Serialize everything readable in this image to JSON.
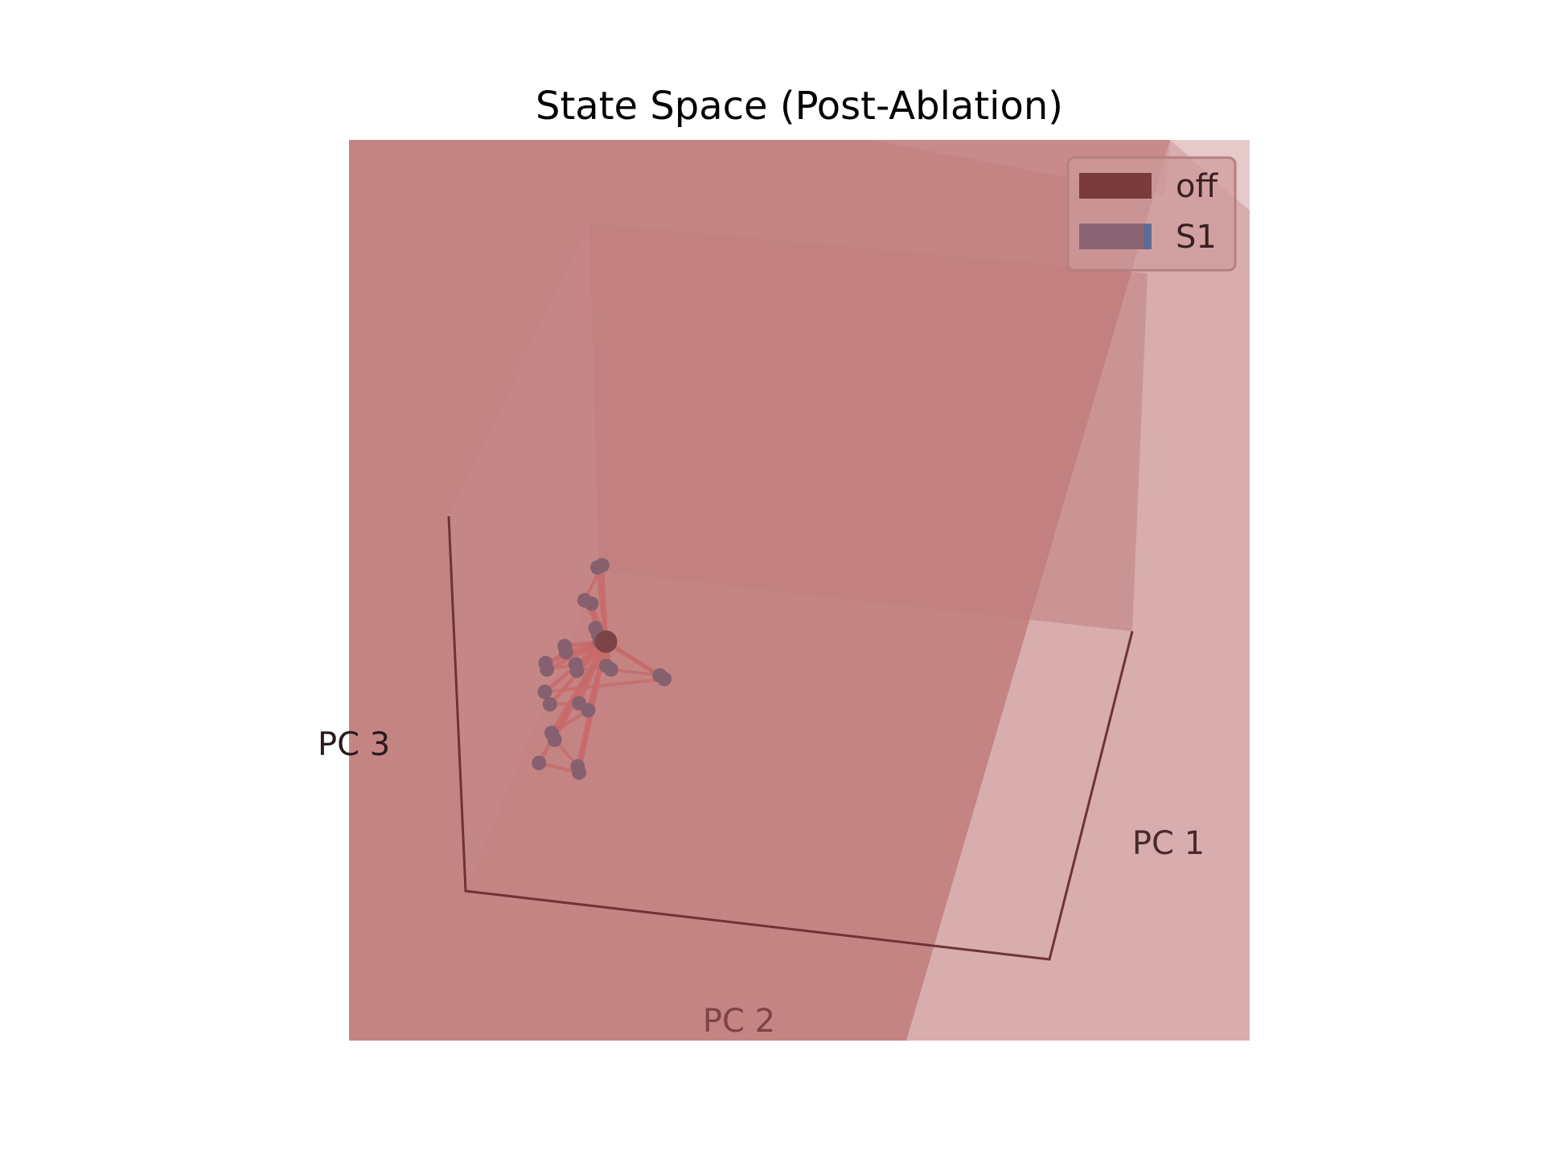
{
  "chart_data": {
    "type": "scatter",
    "subtype": "3d-trajectory",
    "title": "State Space (Post-Ablation)",
    "axes": {
      "x": {
        "label": "PC 1"
      },
      "y": {
        "label": "PC 2"
      },
      "z": {
        "label": "PC 3"
      }
    },
    "grid": false,
    "legend": {
      "placement": "top-right",
      "entries": [
        {
          "label": "off",
          "color": "#7a3b3e"
        },
        {
          "label": "S1",
          "color": "#5f6b94"
        }
      ]
    },
    "colors": {
      "background_plane": "#c48484",
      "light_plane": "#d7adad",
      "trajectory": "#c96a6a",
      "marker": "#86606f",
      "center_marker": "#7d4448",
      "box_edge": "#5a2a2e"
    },
    "series": [
      {
        "name": "S1",
        "points": [
          [
            0.1,
            0.35,
            0.55
          ],
          [
            0.12,
            0.33,
            0.56
          ],
          [
            -0.15,
            0.05,
            0.2
          ],
          [
            -0.12,
            0.02,
            0.18
          ],
          [
            -0.05,
            0.1,
            0.1
          ],
          [
            -0.02,
            0.12,
            0.08
          ],
          [
            0.0,
            0.14,
            0.06
          ],
          [
            -0.2,
            0.2,
            0.0
          ],
          [
            -0.18,
            0.22,
            -0.02
          ],
          [
            -0.3,
            0.25,
            -0.1
          ],
          [
            -0.28,
            0.27,
            -0.12
          ],
          [
            -0.1,
            0.25,
            -0.05
          ],
          [
            -0.08,
            0.27,
            -0.07
          ],
          [
            0.05,
            0.15,
            -0.05
          ],
          [
            0.07,
            0.13,
            -0.07
          ],
          [
            0.35,
            0.05,
            -0.05
          ],
          [
            0.37,
            0.03,
            -0.07
          ],
          [
            -0.25,
            0.35,
            -0.2
          ],
          [
            -0.2,
            0.38,
            -0.24
          ],
          [
            -0.05,
            0.3,
            -0.22
          ],
          [
            0.0,
            0.28,
            -0.25
          ],
          [
            -0.15,
            0.45,
            -0.35
          ],
          [
            -0.12,
            0.47,
            -0.37
          ],
          [
            0.05,
            0.5,
            -0.45
          ],
          [
            0.07,
            0.52,
            -0.47
          ],
          [
            -0.18,
            0.55,
            -0.48
          ]
        ]
      },
      {
        "name": "off",
        "points": [
          [
            0.02,
            0.1,
            0.05
          ]
        ]
      }
    ]
  }
}
